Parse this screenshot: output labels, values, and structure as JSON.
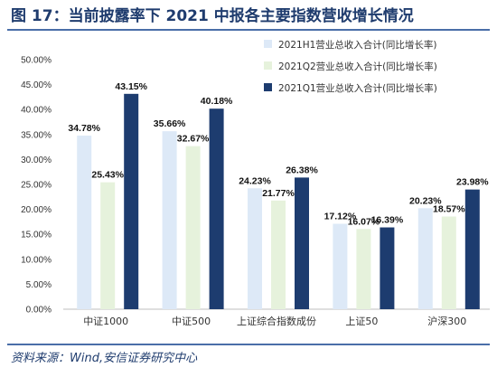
{
  "figure": {
    "title": "图 17：当前披露率下 2021 中报各主要指数营收增长情况",
    "source": "资料来源：Wind,安信证券研究中心"
  },
  "chart_data": {
    "type": "bar",
    "categories": [
      "中证1000",
      "中证500",
      "上证综合指数成份",
      "上证50",
      "沪深300"
    ],
    "series": [
      {
        "name": "2021H1营业总收入合计(同比增长率)",
        "values": [
          34.78,
          35.66,
          24.23,
          17.12,
          20.23
        ],
        "color": "#dde9f7"
      },
      {
        "name": "2021Q2营业总收入合计(同比增长率)",
        "values": [
          25.43,
          32.67,
          21.77,
          16.07,
          18.57
        ],
        "color": "#e6f2dc"
      },
      {
        "name": "2021Q1营业总收入合计(同比增长率)",
        "values": [
          43.15,
          40.18,
          26.38,
          16.39,
          23.98
        ],
        "color": "#1d3c6f"
      }
    ],
    "labels": [
      [
        "34.78%",
        "35.66%",
        "24.23%",
        "17.12%",
        "20.23%"
      ],
      [
        "25.43%",
        "32.67%",
        "21.77%",
        "16.07%",
        "18.57%"
      ],
      [
        "43.15%",
        "40.18%",
        "26.38%",
        "16.39%",
        "23.98%"
      ]
    ],
    "ylim": [
      0,
      50
    ],
    "yticks": [
      "0.00%",
      "5.00%",
      "10.00%",
      "15.00%",
      "20.00%",
      "25.00%",
      "30.00%",
      "35.00%",
      "40.00%",
      "45.00%",
      "50.00%"
    ],
    "unit": "%",
    "grid": false,
    "legend_position": "top-right"
  }
}
